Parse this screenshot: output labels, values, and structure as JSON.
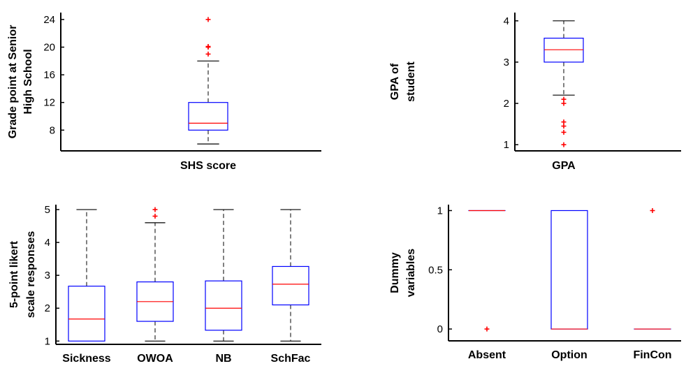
{
  "chart_data": [
    {
      "type": "box",
      "xlabel": "SHS score",
      "ylabel_lines": [
        "Grade point at Senior",
        "High School"
      ],
      "ylim": [
        5,
        25
      ],
      "yticks": [
        8,
        12,
        16,
        20,
        24
      ],
      "categories": [
        ""
      ],
      "boxes": [
        {
          "whisker_low": 6,
          "q1": 8,
          "median": 9,
          "q3": 12,
          "whisker_high": 18,
          "outliers": [
            19,
            20,
            20.1,
            24
          ]
        }
      ]
    },
    {
      "type": "box",
      "xlabel": "GPA",
      "ylabel_lines": [
        "GPA of",
        "student"
      ],
      "ylim": [
        0.85,
        4.2
      ],
      "yticks": [
        1,
        2,
        3,
        4
      ],
      "categories": [
        ""
      ],
      "boxes": [
        {
          "whisker_low": 2.2,
          "q1": 3.0,
          "median": 3.3,
          "q3": 3.58,
          "whisker_high": 4.0,
          "outliers": [
            2.1,
            2.0,
            1.55,
            1.45,
            1.3,
            1.0
          ]
        }
      ]
    },
    {
      "type": "box",
      "xlabel": "",
      "ylabel_lines": [
        "5-point likert",
        "scale responses"
      ],
      "ylim": [
        0.9,
        5.15
      ],
      "yticks": [
        1,
        2,
        3,
        4,
        5
      ],
      "categories": [
        "Sickness",
        "OWOA",
        "NB",
        "SchFac"
      ],
      "boxes": [
        {
          "whisker_low": 1,
          "q1": 1.0,
          "median": 1.67,
          "q3": 2.67,
          "whisker_high": 5,
          "outliers": []
        },
        {
          "whisker_low": 1,
          "q1": 1.6,
          "median": 2.2,
          "q3": 2.8,
          "whisker_high": 4.6,
          "outliers": [
            4.8,
            5.0
          ]
        },
        {
          "whisker_low": 1,
          "q1": 1.33,
          "median": 2.0,
          "q3": 2.83,
          "whisker_high": 5,
          "outliers": []
        },
        {
          "whisker_low": 1,
          "q1": 2.1,
          "median": 2.73,
          "q3": 3.27,
          "whisker_high": 5,
          "outliers": []
        }
      ]
    },
    {
      "type": "box",
      "xlabel": "",
      "ylabel_lines": [
        "Dummy",
        "variables"
      ],
      "ylim": [
        -0.1,
        1.05
      ],
      "yticks": [
        0,
        0.5,
        1
      ],
      "categories": [
        "Absent",
        "Option",
        "FinCon"
      ],
      "boxes": [
        {
          "whisker_low": 1,
          "q1": 1,
          "median": 1,
          "q3": 1,
          "whisker_high": 1,
          "outliers": [
            0
          ]
        },
        {
          "whisker_low": 0,
          "q1": 0,
          "median": 0,
          "q3": 1,
          "whisker_high": 1,
          "outliers": []
        },
        {
          "whisker_low": 0,
          "q1": 0,
          "median": 0,
          "q3": 0,
          "whisker_high": 0,
          "outliers": [
            1
          ]
        }
      ]
    }
  ],
  "colors": {
    "box": "#0000ff",
    "median": "#ff0000",
    "outlier": "#ff0000",
    "whisker": "#000000",
    "axis": "#000000"
  }
}
